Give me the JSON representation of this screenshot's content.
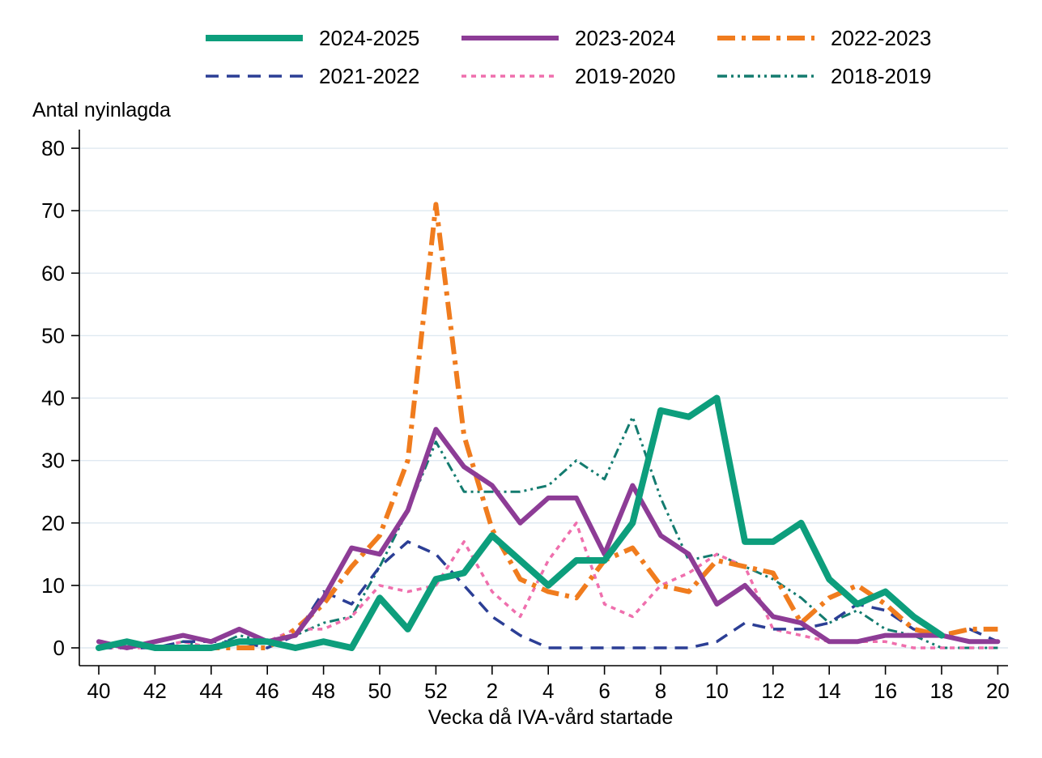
{
  "chart_data": {
    "type": "line",
    "title": "",
    "ylabel": "Antal nyinlagda",
    "xlabel": "Vecka då IVA-vård startade",
    "categories": [
      "40",
      "41",
      "42",
      "43",
      "44",
      "45",
      "46",
      "47",
      "48",
      "49",
      "50",
      "51",
      "52",
      "1",
      "2",
      "3",
      "4",
      "5",
      "6",
      "7",
      "8",
      "9",
      "10",
      "11",
      "12",
      "13",
      "14",
      "15",
      "16",
      "17",
      "18",
      "19",
      "20"
    ],
    "x_labeled_ticks": [
      "40",
      "42",
      "44",
      "46",
      "48",
      "50",
      "52",
      "2",
      "4",
      "6",
      "8",
      "10",
      "12",
      "14",
      "16",
      "18",
      "20"
    ],
    "x_labeled_indices": [
      0,
      2,
      4,
      6,
      8,
      10,
      12,
      14,
      16,
      18,
      20,
      22,
      24,
      26,
      28,
      30,
      32
    ],
    "y_ticks": [
      0,
      10,
      20,
      30,
      40,
      50,
      60,
      70,
      80
    ],
    "ylim": [
      0,
      80
    ],
    "grid": "horizontal",
    "grid_color": "#dfe9f1",
    "axis_color": "#000000",
    "legend_position": "top",
    "series": [
      {
        "name": "2024-2025",
        "color": "#0d9e7c",
        "dash": "",
        "width": 8,
        "values": [
          0,
          1,
          0,
          0,
          0,
          1,
          1,
          0,
          1,
          0,
          8,
          3,
          11,
          12,
          18,
          14,
          10,
          14,
          14,
          20,
          38,
          37,
          40,
          17,
          17,
          20,
          11,
          7,
          9,
          5,
          2,
          null,
          null
        ]
      },
      {
        "name": "2023-2024",
        "color": "#8d3c96",
        "dash": "",
        "width": 6,
        "values": [
          1,
          0,
          1,
          2,
          1,
          3,
          1,
          2,
          8,
          16,
          15,
          22,
          35,
          29,
          26,
          20,
          24,
          24,
          15,
          26,
          18,
          15,
          7,
          10,
          5,
          4,
          1,
          1,
          2,
          2,
          2,
          1,
          1
        ]
      },
      {
        "name": "2022-2023",
        "color": "#f07c1e",
        "dash": "22 8 5 8",
        "width": 6,
        "values": [
          0,
          1,
          0,
          0,
          0,
          0,
          0,
          3,
          7,
          13,
          18,
          30,
          71,
          34,
          19,
          11,
          9,
          8,
          14,
          16,
          10,
          9,
          14,
          13,
          12,
          4,
          8,
          10,
          7,
          3,
          2,
          3,
          3
        ]
      },
      {
        "name": "2021-2022",
        "color": "#2b3e95",
        "dash": "16 10",
        "width": 3.5,
        "values": [
          0,
          0,
          0,
          1,
          1,
          1,
          0,
          2,
          9,
          7,
          13,
          17,
          15,
          10,
          5,
          2,
          0,
          0,
          0,
          0,
          0,
          0,
          1,
          4,
          3,
          3,
          4,
          7,
          6,
          3,
          2,
          3,
          1
        ]
      },
      {
        "name": "2019-2020",
        "color": "#ef6fad",
        "dash": "6 6",
        "width": 3.5,
        "values": [
          0,
          0,
          0,
          1,
          0,
          1,
          1,
          3,
          3,
          5,
          10,
          9,
          10,
          17,
          9,
          5,
          14,
          20,
          7,
          5,
          10,
          12,
          15,
          13,
          3,
          2,
          1,
          1,
          1,
          0,
          0,
          0,
          0
        ]
      },
      {
        "name": "2018-2019",
        "color": "#137b6f",
        "dash": "12 5 3 5 3 5",
        "width": 3,
        "values": [
          0,
          1,
          0,
          1,
          0,
          2,
          1,
          2,
          4,
          5,
          13,
          22,
          33,
          25,
          25,
          25,
          26,
          30,
          27,
          37,
          24,
          14,
          15,
          13,
          11,
          8,
          4,
          6,
          3,
          2,
          0,
          0,
          0
        ]
      }
    ]
  }
}
